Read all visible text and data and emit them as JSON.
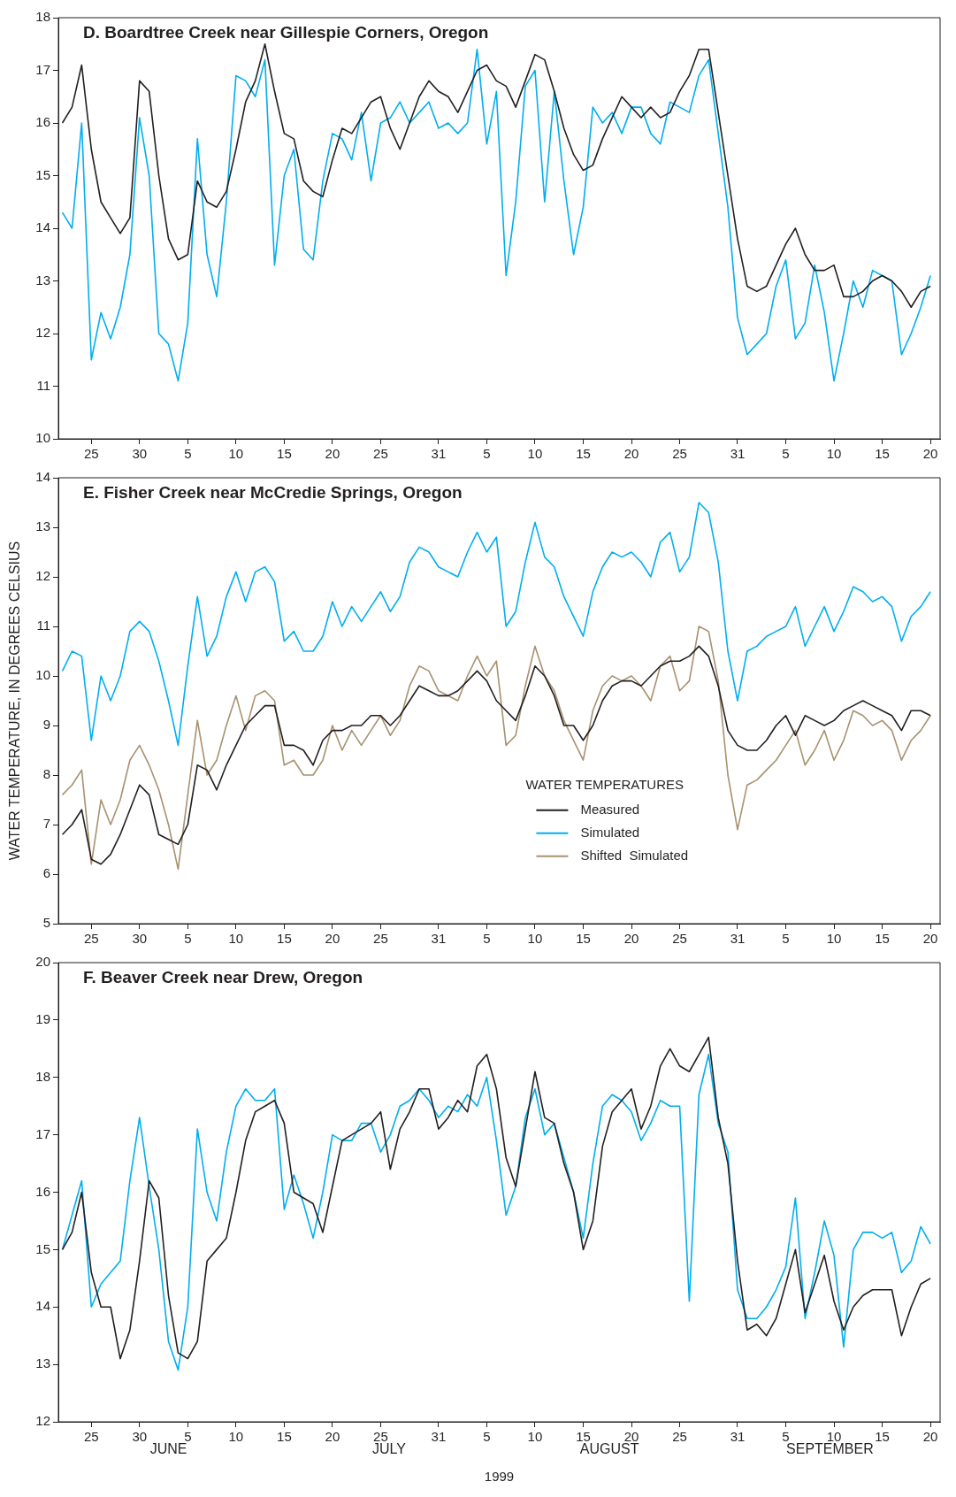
{
  "chart_data": [
    {
      "type": "line",
      "title": "D. Boardtree Creek near Gillespie Corners, Oregon",
      "x": [
        "1999-06-22",
        "1999-06-23",
        "1999-06-24",
        "1999-06-25",
        "1999-06-26",
        "1999-06-27",
        "1999-06-28",
        "1999-06-29",
        "1999-06-30",
        "1999-07-01",
        "1999-07-02",
        "1999-07-03",
        "1999-07-04",
        "1999-07-05",
        "1999-07-06",
        "1999-07-07",
        "1999-07-08",
        "1999-07-09",
        "1999-07-10",
        "1999-07-11",
        "1999-07-12",
        "1999-07-13",
        "1999-07-14",
        "1999-07-15",
        "1999-07-16",
        "1999-07-17",
        "1999-07-18",
        "1999-07-19",
        "1999-07-20",
        "1999-07-21",
        "1999-07-22",
        "1999-07-23",
        "1999-07-24",
        "1999-07-25",
        "1999-07-26",
        "1999-07-27",
        "1999-07-28",
        "1999-07-29",
        "1999-07-30",
        "1999-07-31",
        "1999-08-01",
        "1999-08-02",
        "1999-08-03",
        "1999-08-04",
        "1999-08-05",
        "1999-08-06",
        "1999-08-07",
        "1999-08-08",
        "1999-08-09",
        "1999-08-10",
        "1999-08-11",
        "1999-08-12",
        "1999-08-13",
        "1999-08-14",
        "1999-08-15",
        "1999-08-16",
        "1999-08-17",
        "1999-08-18",
        "1999-08-19",
        "1999-08-20",
        "1999-08-21",
        "1999-08-22",
        "1999-08-23",
        "1999-08-24",
        "1999-08-25",
        "1999-08-26",
        "1999-08-27",
        "1999-08-28",
        "1999-08-29",
        "1999-08-30",
        "1999-08-31",
        "1999-09-01",
        "1999-09-02",
        "1999-09-03",
        "1999-09-04",
        "1999-09-05",
        "1999-09-06",
        "1999-09-07",
        "1999-09-08",
        "1999-09-09",
        "1999-09-10",
        "1999-09-11",
        "1999-09-12",
        "1999-09-13",
        "1999-09-14",
        "1999-09-15",
        "1999-09-16",
        "1999-09-17",
        "1999-09-18",
        "1999-09-19",
        "1999-09-20"
      ],
      "series": [
        {
          "color": "#231f20",
          "values": [
            16.0,
            16.3,
            17.1,
            15.5,
            14.5,
            14.2,
            13.9,
            14.2,
            16.8,
            16.6,
            15.0,
            13.8,
            13.4,
            13.5,
            14.9,
            14.5,
            14.4,
            14.7,
            15.5,
            16.4,
            16.8,
            17.5,
            16.6,
            15.8,
            15.7,
            14.9,
            14.7,
            14.6,
            15.3,
            15.9,
            15.8,
            16.1,
            16.4,
            16.5,
            15.9,
            15.5,
            16.0,
            16.5,
            16.8,
            16.6,
            16.5,
            16.2,
            16.6,
            17.0,
            17.1,
            16.8,
            16.7,
            16.3,
            16.8,
            17.3,
            17.2,
            16.6,
            15.9,
            15.4,
            15.1,
            15.2,
            15.7,
            16.1,
            16.5,
            16.3,
            16.1,
            16.3,
            16.1,
            16.2,
            16.6,
            16.9,
            17.4,
            17.4,
            16.2,
            15.0,
            13.8,
            12.9,
            12.8,
            12.9,
            13.3,
            13.7,
            14.0,
            13.5,
            13.2,
            13.2,
            13.3,
            12.7,
            12.7,
            12.8,
            13.0,
            13.1,
            13.0,
            12.8,
            12.5,
            12.8,
            12.9
          ]
        },
        {
          "color": "#00aeef",
          "values": [
            14.3,
            14.0,
            16.0,
            11.5,
            12.4,
            11.9,
            12.5,
            13.5,
            16.1,
            15.0,
            12.0,
            11.8,
            11.1,
            12.2,
            15.7,
            13.5,
            12.7,
            14.5,
            16.9,
            16.8,
            16.5,
            17.2,
            13.3,
            15.0,
            15.5,
            13.6,
            13.4,
            14.9,
            15.8,
            15.7,
            15.3,
            16.2,
            14.9,
            16.0,
            16.1,
            16.4,
            16.0,
            16.2,
            16.4,
            15.9,
            16.0,
            15.8,
            16.0,
            17.4,
            15.6,
            16.6,
            13.1,
            14.5,
            16.7,
            17.0,
            14.5,
            16.6,
            14.9,
            13.5,
            14.4,
            16.3,
            16.0,
            16.2,
            15.8,
            16.3,
            16.3,
            15.8,
            15.6,
            16.4,
            16.3,
            16.2,
            16.9,
            17.2,
            15.8,
            14.4,
            12.3,
            11.6,
            11.8,
            12.0,
            12.9,
            13.4,
            11.9,
            12.2,
            13.3,
            12.4,
            11.1,
            12.0,
            13.0,
            12.5,
            13.2,
            13.1,
            13.0,
            11.6,
            12.0,
            12.5,
            13.1
          ]
        }
      ],
      "xlim": [
        "1999-06-21T14:00",
        "1999-09-21"
      ],
      "xticks": [
        {
          "value": "1999-06-25",
          "label": "25"
        },
        {
          "value": "1999-06-30",
          "label": "30"
        },
        {
          "value": "1999-07-05",
          "label": "5"
        },
        {
          "value": "1999-07-10",
          "label": "10"
        },
        {
          "value": "1999-07-15",
          "label": "15"
        },
        {
          "value": "1999-07-20",
          "label": "20"
        },
        {
          "value": "1999-07-25",
          "label": "25"
        },
        {
          "value": "1999-07-31",
          "label": "31"
        },
        {
          "value": "1999-08-05",
          "label": "5"
        },
        {
          "value": "1999-08-10",
          "label": "10"
        },
        {
          "value": "1999-08-15",
          "label": "15"
        },
        {
          "value": "1999-08-20",
          "label": "20"
        },
        {
          "value": "1999-08-25",
          "label": "25"
        },
        {
          "value": "1999-08-31",
          "label": "31"
        },
        {
          "value": "1999-09-05",
          "label": "5"
        },
        {
          "value": "1999-09-10",
          "label": "10"
        },
        {
          "value": "1999-09-15",
          "label": "15"
        },
        {
          "value": "1999-09-20",
          "label": "20"
        }
      ],
      "ylim": [
        10,
        18
      ],
      "yticks": [
        10,
        11,
        12,
        13,
        14,
        15,
        16,
        17,
        18
      ]
    },
    {
      "type": "line",
      "title": "E. Fisher Creek near McCredie Springs, Oregon",
      "ylabel": "WATER TEMPERATURE, IN DEGREES CELSIUS",
      "legend_title": "WATER TEMPERATURES",
      "legend": "bottom",
      "x": [
        "1999-06-22",
        "1999-06-23",
        "1999-06-24",
        "1999-06-25",
        "1999-06-26",
        "1999-06-27",
        "1999-06-28",
        "1999-06-29",
        "1999-06-30",
        "1999-07-01",
        "1999-07-02",
        "1999-07-03",
        "1999-07-04",
        "1999-07-05",
        "1999-07-06",
        "1999-07-07",
        "1999-07-08",
        "1999-07-09",
        "1999-07-10",
        "1999-07-11",
        "1999-07-12",
        "1999-07-13",
        "1999-07-14",
        "1999-07-15",
        "1999-07-16",
        "1999-07-17",
        "1999-07-18",
        "1999-07-19",
        "1999-07-20",
        "1999-07-21",
        "1999-07-22",
        "1999-07-23",
        "1999-07-24",
        "1999-07-25",
        "1999-07-26",
        "1999-07-27",
        "1999-07-28",
        "1999-07-29",
        "1999-07-30",
        "1999-07-31",
        "1999-08-01",
        "1999-08-02",
        "1999-08-03",
        "1999-08-04",
        "1999-08-05",
        "1999-08-06",
        "1999-08-07",
        "1999-08-08",
        "1999-08-09",
        "1999-08-10",
        "1999-08-11",
        "1999-08-12",
        "1999-08-13",
        "1999-08-14",
        "1999-08-15",
        "1999-08-16",
        "1999-08-17",
        "1999-08-18",
        "1999-08-19",
        "1999-08-20",
        "1999-08-21",
        "1999-08-22",
        "1999-08-23",
        "1999-08-24",
        "1999-08-25",
        "1999-08-26",
        "1999-08-27",
        "1999-08-28",
        "1999-08-29",
        "1999-08-30",
        "1999-08-31",
        "1999-09-01",
        "1999-09-02",
        "1999-09-03",
        "1999-09-04",
        "1999-09-05",
        "1999-09-06",
        "1999-09-07",
        "1999-09-08",
        "1999-09-09",
        "1999-09-10",
        "1999-09-11",
        "1999-09-12",
        "1999-09-13",
        "1999-09-14",
        "1999-09-15",
        "1999-09-16",
        "1999-09-17",
        "1999-09-18",
        "1999-09-19",
        "1999-09-20"
      ],
      "series": [
        {
          "name": "Measured",
          "color": "#231f20",
          "values": [
            6.8,
            7.0,
            7.3,
            6.3,
            6.2,
            6.4,
            6.8,
            7.3,
            7.8,
            7.6,
            6.8,
            6.7,
            6.6,
            7.0,
            8.2,
            8.1,
            7.7,
            8.2,
            8.6,
            9.0,
            9.2,
            9.4,
            9.4,
            8.6,
            8.6,
            8.5,
            8.2,
            8.7,
            8.9,
            8.9,
            9.0,
            9.0,
            9.2,
            9.2,
            9.0,
            9.2,
            9.5,
            9.8,
            9.7,
            9.6,
            9.6,
            9.7,
            9.9,
            10.1,
            9.9,
            9.5,
            9.3,
            9.1,
            9.6,
            10.2,
            10.0,
            9.6,
            9.0,
            9.0,
            8.7,
            9.0,
            9.5,
            9.8,
            9.9,
            9.9,
            9.8,
            10.0,
            10.2,
            10.3,
            10.3,
            10.4,
            10.6,
            10.4,
            9.8,
            8.9,
            8.6,
            8.5,
            8.5,
            8.7,
            9.0,
            9.2,
            8.8,
            9.2,
            9.1,
            9.0,
            9.1,
            9.3,
            9.4,
            9.5,
            9.4,
            9.3,
            9.2,
            8.9,
            9.3,
            9.3,
            9.2
          ]
        },
        {
          "name": "Simulated",
          "color": "#00aeef",
          "values": [
            10.1,
            10.5,
            10.4,
            8.7,
            10.0,
            9.5,
            10.0,
            10.9,
            11.1,
            10.9,
            10.3,
            9.5,
            8.6,
            10.2,
            11.6,
            10.4,
            10.8,
            11.6,
            12.1,
            11.5,
            12.1,
            12.2,
            11.9,
            10.7,
            10.9,
            10.5,
            10.5,
            10.8,
            11.5,
            11.0,
            11.4,
            11.1,
            11.4,
            11.7,
            11.3,
            11.6,
            12.3,
            12.6,
            12.5,
            12.2,
            12.1,
            12.0,
            12.5,
            12.9,
            12.5,
            12.8,
            11.0,
            11.3,
            12.3,
            13.1,
            12.4,
            12.2,
            11.6,
            11.2,
            10.8,
            11.7,
            12.2,
            12.5,
            12.4,
            12.5,
            12.3,
            12.0,
            12.7,
            12.9,
            12.1,
            12.4,
            13.5,
            13.3,
            12.3,
            10.5,
            9.5,
            10.5,
            10.6,
            10.8,
            10.9,
            11.0,
            11.4,
            10.6,
            11.0,
            11.4,
            10.9,
            11.3,
            11.8,
            11.7,
            11.5,
            11.6,
            11.4,
            10.7,
            11.2,
            11.4,
            11.7
          ]
        },
        {
          "name": "Shifted  Simulated",
          "color": "#a8916f",
          "values": [
            7.6,
            7.8,
            8.1,
            6.2,
            7.5,
            7.0,
            7.5,
            8.3,
            8.6,
            8.2,
            7.7,
            7.0,
            6.1,
            7.6,
            9.1,
            8.0,
            8.3,
            9.0,
            9.6,
            8.9,
            9.6,
            9.7,
            9.5,
            8.2,
            8.3,
            8.0,
            8.0,
            8.3,
            9.0,
            8.5,
            8.9,
            8.6,
            8.9,
            9.2,
            8.8,
            9.1,
            9.8,
            10.2,
            10.1,
            9.7,
            9.6,
            9.5,
            10.0,
            10.4,
            10.0,
            10.3,
            8.6,
            8.8,
            9.8,
            10.6,
            10.0,
            9.7,
            9.1,
            8.7,
            8.3,
            9.3,
            9.8,
            10.0,
            9.9,
            10.0,
            9.8,
            9.5,
            10.2,
            10.4,
            9.7,
            9.9,
            11.0,
            10.9,
            9.9,
            8.0,
            6.9,
            7.8,
            7.9,
            8.1,
            8.3,
            8.6,
            8.9,
            8.2,
            8.5,
            8.9,
            8.3,
            8.7,
            9.3,
            9.2,
            9.0,
            9.1,
            8.9,
            8.3,
            8.7,
            8.9,
            9.2
          ]
        }
      ],
      "xlim": [
        "1999-06-21T14:00",
        "1999-09-21"
      ],
      "xticks": [
        {
          "value": "1999-06-25",
          "label": "25"
        },
        {
          "value": "1999-06-30",
          "label": "30"
        },
        {
          "value": "1999-07-05",
          "label": "5"
        },
        {
          "value": "1999-07-10",
          "label": "10"
        },
        {
          "value": "1999-07-15",
          "label": "15"
        },
        {
          "value": "1999-07-20",
          "label": "20"
        },
        {
          "value": "1999-07-25",
          "label": "25"
        },
        {
          "value": "1999-07-31",
          "label": "31"
        },
        {
          "value": "1999-08-05",
          "label": "5"
        },
        {
          "value": "1999-08-10",
          "label": "10"
        },
        {
          "value": "1999-08-15",
          "label": "15"
        },
        {
          "value": "1999-08-20",
          "label": "20"
        },
        {
          "value": "1999-08-25",
          "label": "25"
        },
        {
          "value": "1999-08-31",
          "label": "31"
        },
        {
          "value": "1999-09-05",
          "label": "5"
        },
        {
          "value": "1999-09-10",
          "label": "10"
        },
        {
          "value": "1999-09-15",
          "label": "15"
        },
        {
          "value": "1999-09-20",
          "label": "20"
        }
      ],
      "ylim": [
        5,
        14
      ],
      "yticks": [
        5,
        6,
        7,
        8,
        9,
        10,
        11,
        12,
        13,
        14
      ]
    },
    {
      "type": "line",
      "title": "F. Beaver Creek near Drew, Oregon",
      "xlabel": "1999",
      "annotations": [
        "JUNE",
        "JULY",
        "AUGUST",
        "SEPTEMBER"
      ],
      "x": [
        "1999-06-22",
        "1999-06-23",
        "1999-06-24",
        "1999-06-25",
        "1999-06-26",
        "1999-06-27",
        "1999-06-28",
        "1999-06-29",
        "1999-06-30",
        "1999-07-01",
        "1999-07-02",
        "1999-07-03",
        "1999-07-04",
        "1999-07-05",
        "1999-07-06",
        "1999-07-07",
        "1999-07-08",
        "1999-07-09",
        "1999-07-10",
        "1999-07-11",
        "1999-07-12",
        "1999-07-13",
        "1999-07-14",
        "1999-07-15",
        "1999-07-16",
        "1999-07-17",
        "1999-07-18",
        "1999-07-19",
        "1999-07-20",
        "1999-07-21",
        "1999-07-22",
        "1999-07-23",
        "1999-07-24",
        "1999-07-25",
        "1999-07-26",
        "1999-07-27",
        "1999-07-28",
        "1999-07-29",
        "1999-07-30",
        "1999-07-31",
        "1999-08-01",
        "1999-08-02",
        "1999-08-03",
        "1999-08-04",
        "1999-08-05",
        "1999-08-06",
        "1999-08-07",
        "1999-08-08",
        "1999-08-09",
        "1999-08-10",
        "1999-08-11",
        "1999-08-12",
        "1999-08-13",
        "1999-08-14",
        "1999-08-15",
        "1999-08-16",
        "1999-08-17",
        "1999-08-18",
        "1999-08-19",
        "1999-08-20",
        "1999-08-21",
        "1999-08-22",
        "1999-08-23",
        "1999-08-24",
        "1999-08-25",
        "1999-08-26",
        "1999-08-27",
        "1999-08-28",
        "1999-08-29",
        "1999-08-30",
        "1999-08-31",
        "1999-09-01",
        "1999-09-02",
        "1999-09-03",
        "1999-09-04",
        "1999-09-05",
        "1999-09-06",
        "1999-09-07",
        "1999-09-08",
        "1999-09-09",
        "1999-09-10",
        "1999-09-11",
        "1999-09-12",
        "1999-09-13",
        "1999-09-14",
        "1999-09-15",
        "1999-09-16",
        "1999-09-17",
        "1999-09-18",
        "1999-09-19",
        "1999-09-20"
      ],
      "series": [
        {
          "color": "#231f20",
          "values": [
            15.0,
            15.3,
            16.0,
            14.6,
            14.0,
            14.0,
            13.1,
            13.6,
            14.8,
            16.2,
            15.9,
            14.2,
            13.2,
            13.1,
            13.4,
            14.8,
            15.0,
            15.2,
            16.0,
            16.9,
            17.4,
            17.5,
            17.6,
            17.2,
            16.0,
            15.9,
            15.8,
            15.3,
            16.1,
            16.9,
            17.0,
            17.1,
            17.2,
            17.4,
            16.4,
            17.1,
            17.4,
            17.8,
            17.8,
            17.1,
            17.3,
            17.6,
            17.4,
            18.2,
            18.4,
            17.8,
            16.6,
            16.1,
            17.1,
            18.1,
            17.3,
            17.2,
            16.5,
            16.0,
            15.0,
            15.5,
            16.8,
            17.4,
            17.6,
            17.8,
            17.1,
            17.5,
            18.2,
            18.5,
            18.2,
            18.1,
            18.4,
            18.7,
            17.3,
            16.5,
            14.8,
            13.6,
            13.7,
            13.5,
            13.8,
            14.4,
            15.0,
            13.9,
            14.4,
            14.9,
            14.1,
            13.6,
            14.0,
            14.2,
            14.3,
            14.3,
            14.3,
            13.5,
            14.0,
            14.4,
            14.5
          ]
        },
        {
          "color": "#00aeef",
          "values": [
            15.0,
            15.6,
            16.2,
            14.0,
            14.4,
            14.6,
            14.8,
            16.2,
            17.3,
            16.1,
            15.0,
            13.4,
            12.9,
            14.0,
            17.1,
            16.0,
            15.5,
            16.7,
            17.5,
            17.8,
            17.6,
            17.6,
            17.8,
            15.7,
            16.3,
            15.8,
            15.2,
            16.0,
            17.0,
            16.9,
            16.9,
            17.2,
            17.2,
            16.7,
            17.0,
            17.5,
            17.6,
            17.8,
            17.6,
            17.3,
            17.5,
            17.4,
            17.7,
            17.5,
            18.0,
            16.9,
            15.6,
            16.1,
            17.3,
            17.8,
            17.0,
            17.2,
            16.6,
            16.0,
            15.2,
            16.5,
            17.5,
            17.7,
            17.6,
            17.4,
            16.9,
            17.2,
            17.6,
            17.5,
            17.5,
            14.1,
            17.7,
            18.4,
            17.2,
            16.7,
            14.3,
            13.8,
            13.8,
            14.0,
            14.3,
            14.7,
            15.9,
            13.8,
            14.6,
            15.5,
            14.9,
            13.3,
            15.0,
            15.3,
            15.3,
            15.2,
            15.3,
            14.6,
            14.8,
            15.4,
            15.1
          ]
        }
      ],
      "xlim": [
        "1999-06-21T14:00",
        "1999-09-21"
      ],
      "xticks": [
        {
          "value": "1999-06-25",
          "label": "25"
        },
        {
          "value": "1999-06-30",
          "label": "30"
        },
        {
          "value": "1999-07-05",
          "label": "5"
        },
        {
          "value": "1999-07-10",
          "label": "10"
        },
        {
          "value": "1999-07-15",
          "label": "15"
        },
        {
          "value": "1999-07-20",
          "label": "20"
        },
        {
          "value": "1999-07-25",
          "label": "25"
        },
        {
          "value": "1999-07-31",
          "label": "31"
        },
        {
          "value": "1999-08-05",
          "label": "5"
        },
        {
          "value": "1999-08-10",
          "label": "10"
        },
        {
          "value": "1999-08-15",
          "label": "15"
        },
        {
          "value": "1999-08-20",
          "label": "20"
        },
        {
          "value": "1999-08-25",
          "label": "25"
        },
        {
          "value": "1999-08-31",
          "label": "31"
        },
        {
          "value": "1999-09-05",
          "label": "5"
        },
        {
          "value": "1999-09-10",
          "label": "10"
        },
        {
          "value": "1999-09-15",
          "label": "15"
        },
        {
          "value": "1999-09-20",
          "label": "20"
        }
      ],
      "ylim": [
        12,
        20
      ],
      "yticks": [
        12,
        13,
        14,
        15,
        16,
        17,
        18,
        19,
        20
      ]
    }
  ]
}
